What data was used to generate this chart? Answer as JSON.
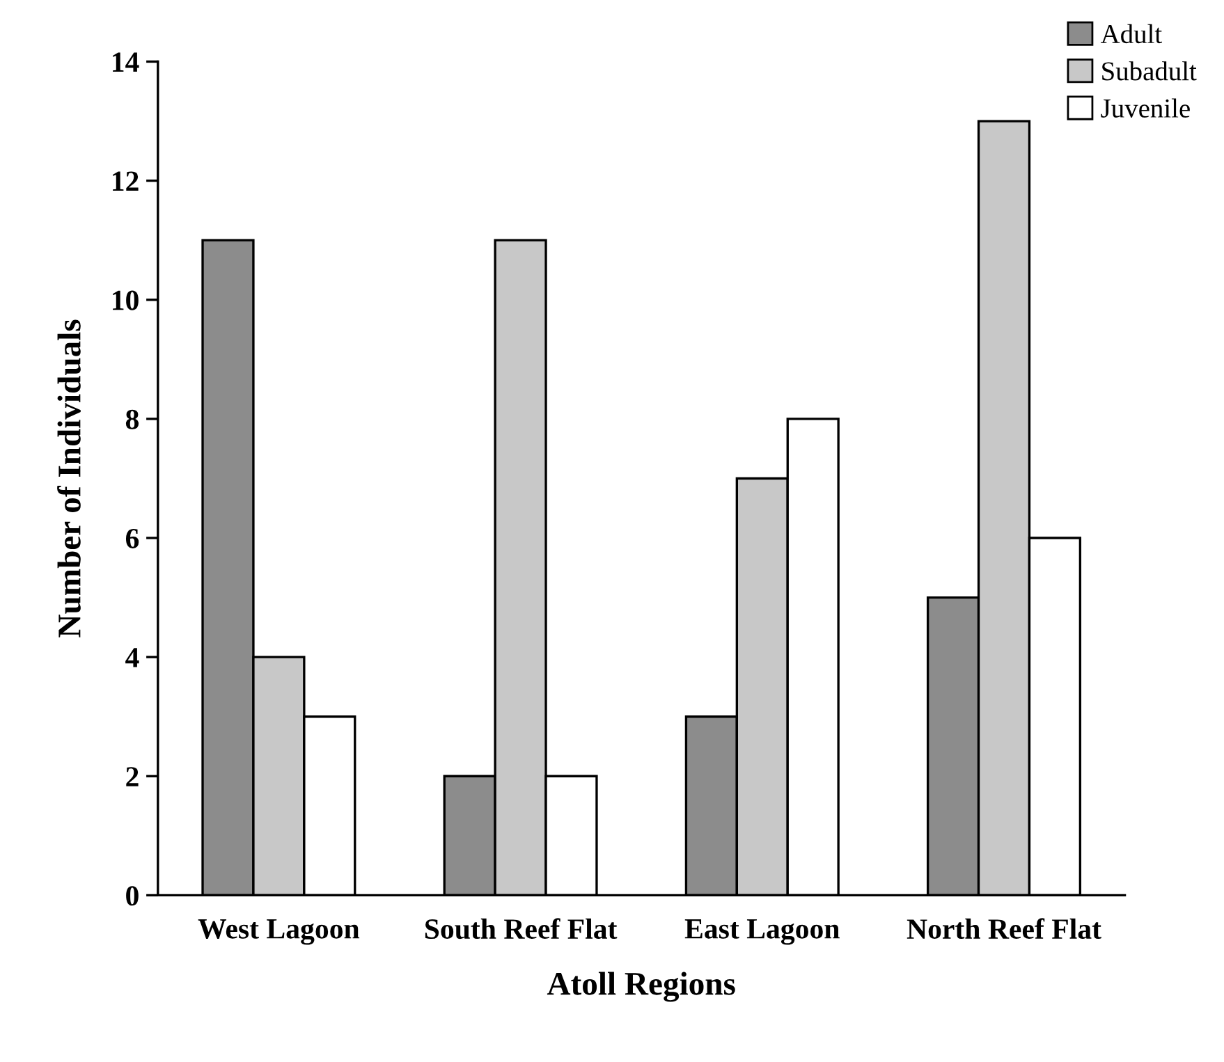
{
  "chart_data": {
    "type": "bar",
    "xlabel": "Atoll Regions",
    "ylabel": "Number of Individuals",
    "categories": [
      "West Lagoon",
      "South Reef Flat",
      "East Lagoon",
      "North Reef Flat"
    ],
    "series": [
      {
        "name": "Adult",
        "color": "#8c8c8c",
        "values": [
          11,
          2,
          3,
          5
        ]
      },
      {
        "name": "Subadult",
        "color": "#c8c8c8",
        "values": [
          4,
          11,
          7,
          13
        ]
      },
      {
        "name": "Juvenile",
        "color": "#ffffff",
        "values": [
          3,
          2,
          8,
          6
        ]
      }
    ],
    "ylim": [
      0,
      14
    ],
    "yticks": [
      0,
      2,
      4,
      6,
      8,
      10,
      12,
      14
    ],
    "grid": false,
    "legend": "top right"
  }
}
